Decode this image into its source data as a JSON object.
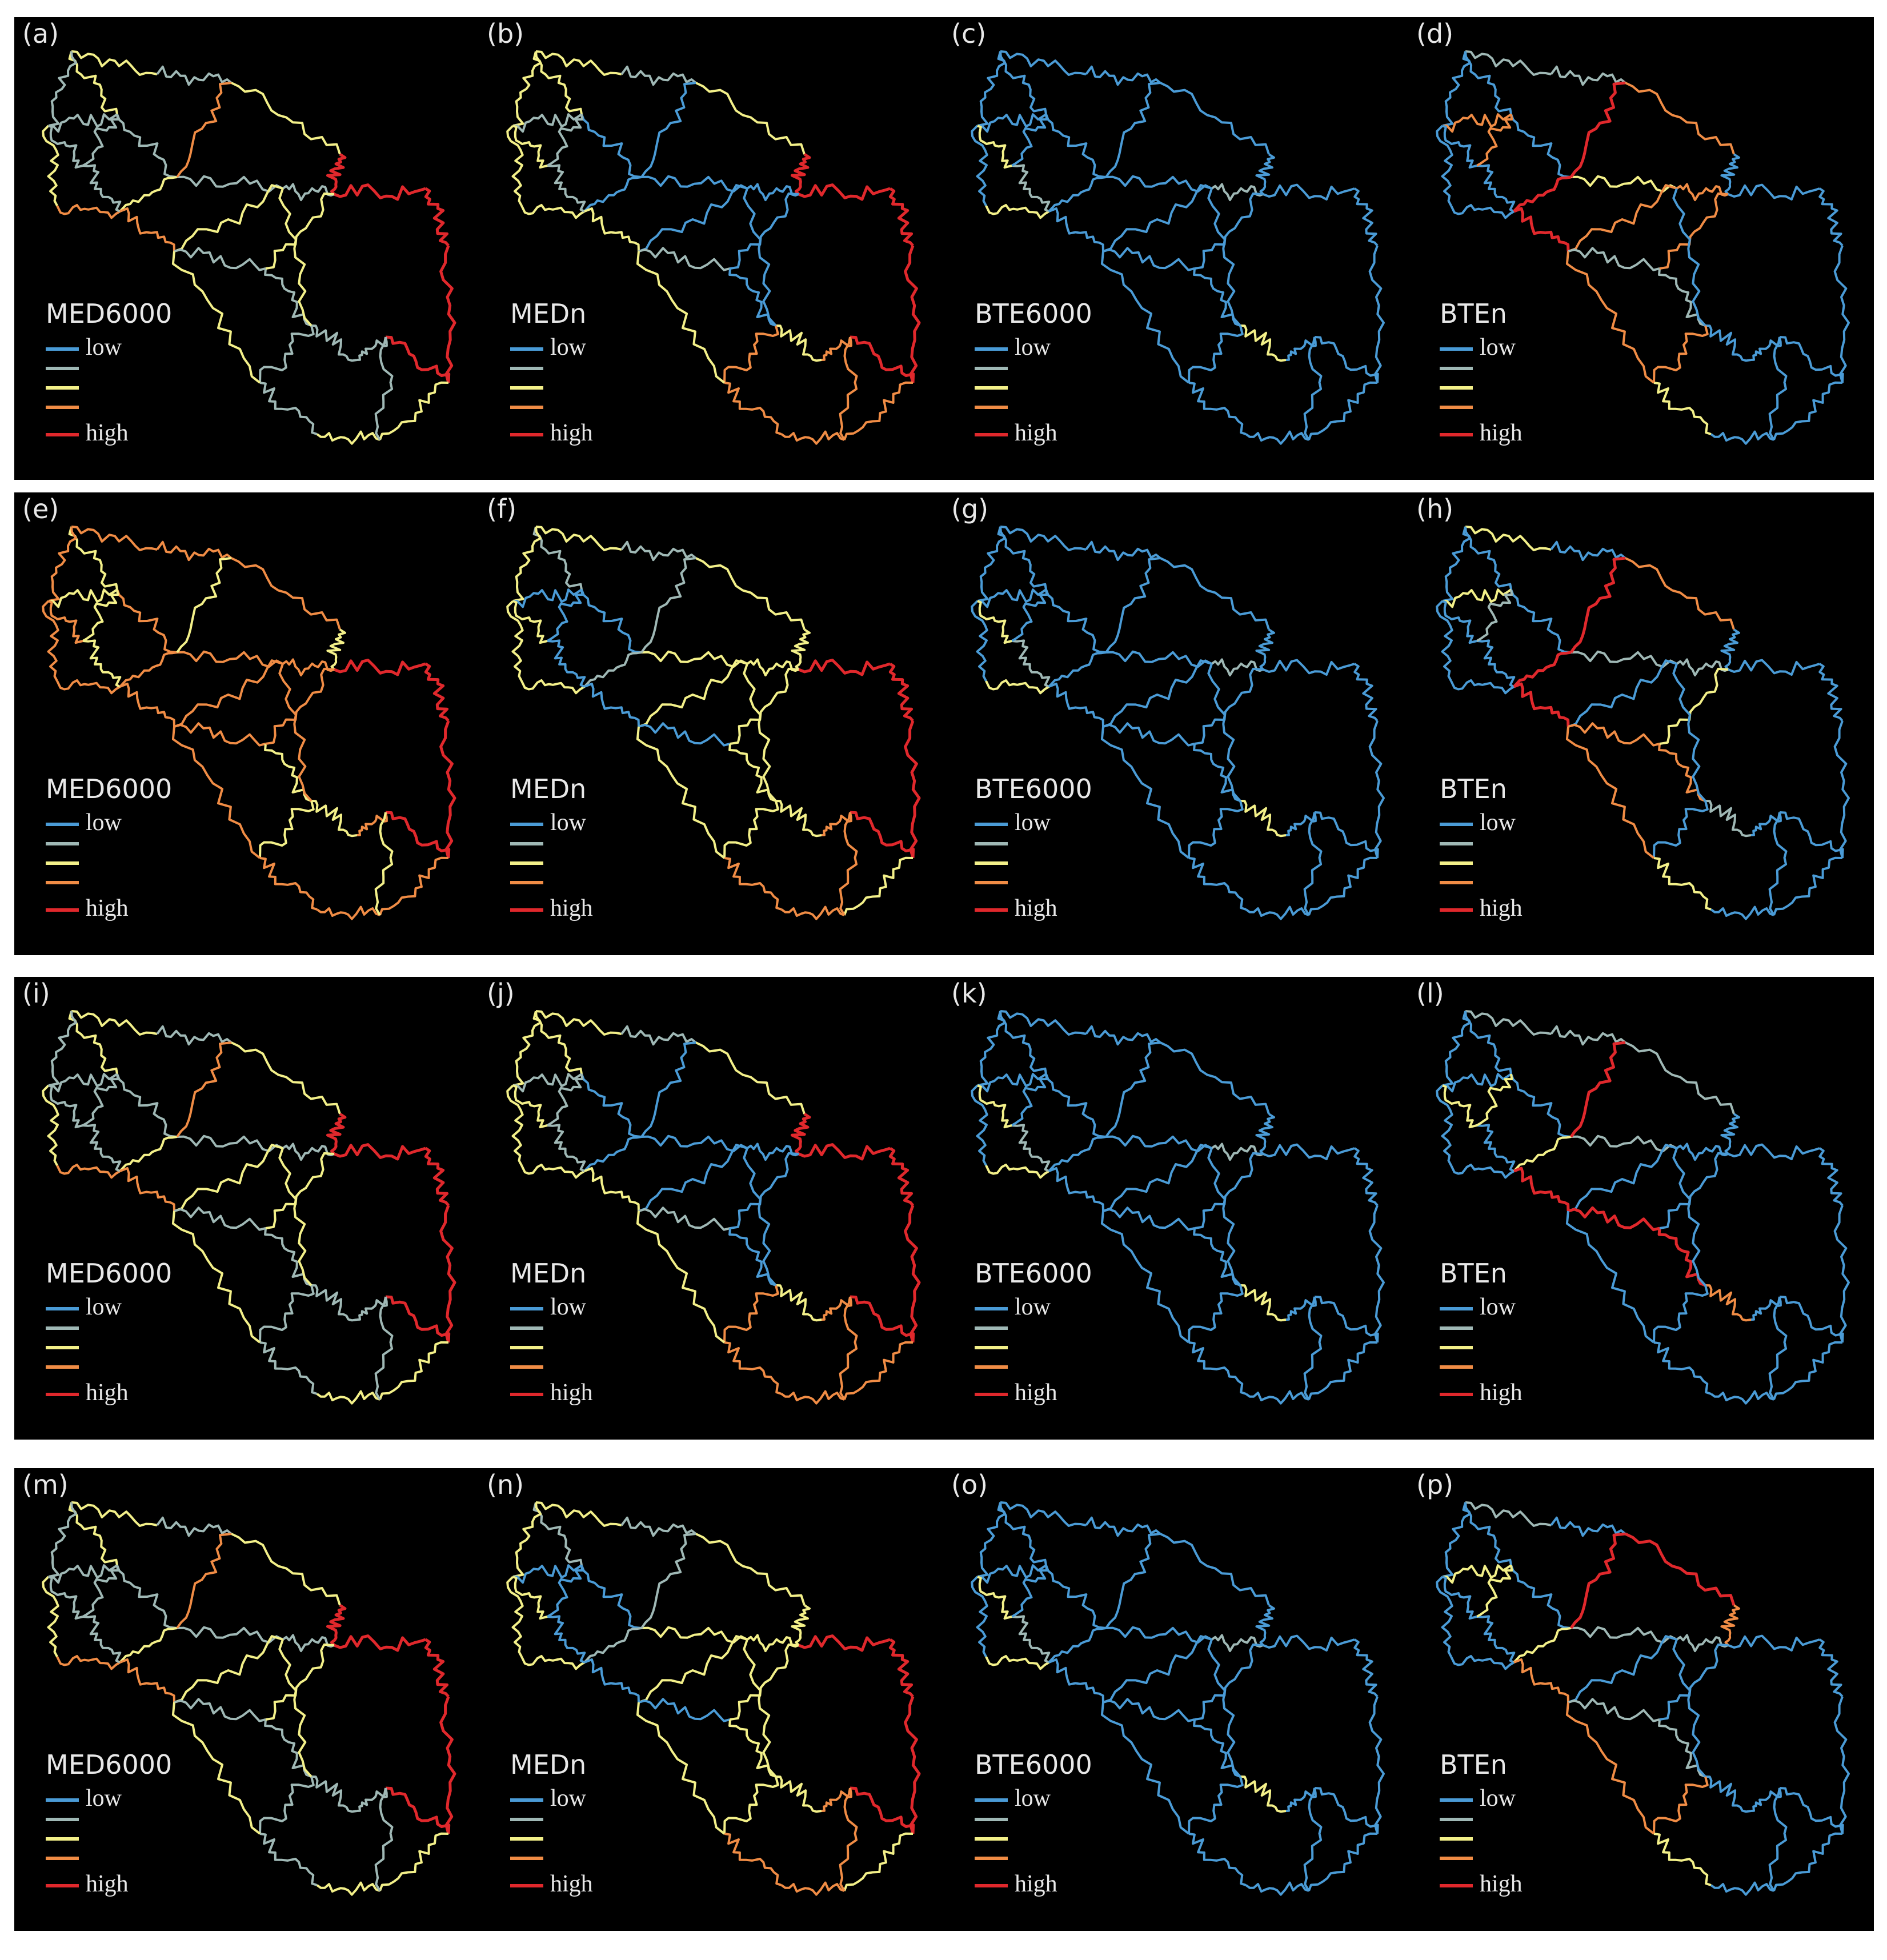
{
  "colors": {
    "blue": "#4a9bd6",
    "grayblue": "#9fb8b5",
    "yellow": "#f3f089",
    "orange": "#f08c45",
    "red": "#e0282c"
  },
  "legend_colors": [
    "#4a9bd6",
    "#9fb8b5",
    "#f3f089",
    "#f08c45",
    "#e0282c"
  ],
  "legend_texts": [
    "low",
    "",
    "",
    "",
    "high"
  ],
  "rows": [
    {
      "panels": [
        {
          "label": "(a)",
          "title": "MED6000",
          "scheme": "med-a"
        },
        {
          "label": "(b)",
          "title": "MEDn",
          "scheme": "medn-b"
        },
        {
          "label": "(c)",
          "title": "BTE6000",
          "scheme": "bte6000"
        },
        {
          "label": "(d)",
          "title": "BTEn",
          "scheme": "bten-d"
        }
      ]
    },
    {
      "panels": [
        {
          "label": "(e)",
          "title": "MED6000",
          "scheme": "med-e"
        },
        {
          "label": "(f)",
          "title": "MEDn",
          "scheme": "medn-f"
        },
        {
          "label": "(g)",
          "title": "BTE6000",
          "scheme": "bte6000"
        },
        {
          "label": "(h)",
          "title": "BTEn",
          "scheme": "bten-h"
        }
      ]
    },
    {
      "panels": [
        {
          "label": "(i)",
          "title": "MED6000",
          "scheme": "med-a"
        },
        {
          "label": "(j)",
          "title": "MEDn",
          "scheme": "medn-b"
        },
        {
          "label": "(k)",
          "title": "BTE6000",
          "scheme": "bte6000"
        },
        {
          "label": "(l)",
          "title": "BTEn",
          "scheme": "bten-l"
        }
      ]
    },
    {
      "panels": [
        {
          "label": "(m)",
          "title": "MED6000",
          "scheme": "med-a"
        },
        {
          "label": "(n)",
          "title": "MEDn",
          "scheme": "medn-f"
        },
        {
          "label": "(o)",
          "title": "BTE6000",
          "scheme": "bte6000"
        },
        {
          "label": "(p)",
          "title": "BTEn",
          "scheme": "bten-p"
        }
      ]
    }
  ]
}
